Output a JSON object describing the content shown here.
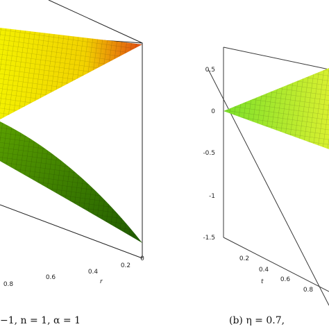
{
  "panels": [
    {
      "axis_label": "r",
      "ticks": [
        "0.8",
        "0.6",
        "0.4",
        "0.2",
        "0"
      ],
      "caption": "−1, n = 1, α = 1"
    },
    {
      "axis_label": "t",
      "ticks": [
        "0.2",
        "0.4",
        "0.6",
        "0.8"
      ],
      "vertical_ticks": [
        "0.5",
        "0",
        "-0.5",
        "-1",
        "-1.5"
      ],
      "caption": "(b) η = 0.7,"
    }
  ]
}
